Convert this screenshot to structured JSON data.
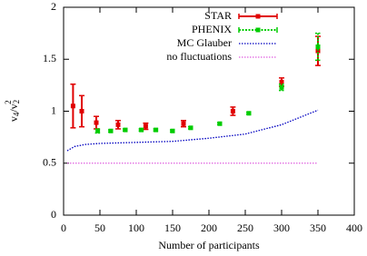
{
  "chart_data": {
    "type": "errorbar",
    "xlabel": "Number of participants",
    "ylabel": [
      "v",
      "4",
      "/v",
      "2",
      "2"
    ],
    "xlim": [
      0,
      400
    ],
    "xticks": [
      0,
      50,
      100,
      150,
      200,
      250,
      300,
      350,
      400
    ],
    "ylim": [
      0,
      2
    ],
    "yticks": [
      0,
      0.5,
      1,
      1.5,
      2
    ],
    "legend": "top-right",
    "series": [
      {
        "name": "STAR",
        "color": "#e00000",
        "style": "errorbar",
        "x": [
          13,
          25,
          45,
          75,
          113,
          165,
          233,
          300,
          350
        ],
        "values": [
          1.05,
          1.0,
          0.89,
          0.87,
          0.855,
          0.88,
          1.0,
          1.28,
          1.58
        ],
        "errors": [
          0.21,
          0.15,
          0.06,
          0.04,
          0.03,
          0.03,
          0.04,
          0.04,
          0.14
        ]
      },
      {
        "name": "PHENIX",
        "color": "#00cc00",
        "style": "errorbar-dotted",
        "x": [
          47,
          65,
          85,
          107,
          127,
          150,
          175,
          215,
          255,
          300,
          350
        ],
        "values": [
          0.81,
          0.81,
          0.82,
          0.82,
          0.82,
          0.81,
          0.84,
          0.88,
          0.98,
          1.23,
          1.62
        ],
        "errors": [
          0.02,
          0.01,
          0.01,
          0.01,
          0.01,
          0.01,
          0.01,
          0.01,
          0.01,
          0.03,
          0.13
        ]
      },
      {
        "name": "MC Glauber",
        "color": "#0000c0",
        "style": "dotted",
        "x": [
          5,
          15,
          30,
          50,
          100,
          150,
          200,
          250,
          300,
          350
        ],
        "values": [
          0.62,
          0.66,
          0.68,
          0.69,
          0.7,
          0.71,
          0.74,
          0.78,
          0.87,
          1.01
        ]
      },
      {
        "name": "no fluctuations",
        "color": "#e060e0",
        "style": "dotted",
        "x": [
          5,
          350
        ],
        "values": [
          0.5,
          0.5
        ]
      }
    ]
  }
}
